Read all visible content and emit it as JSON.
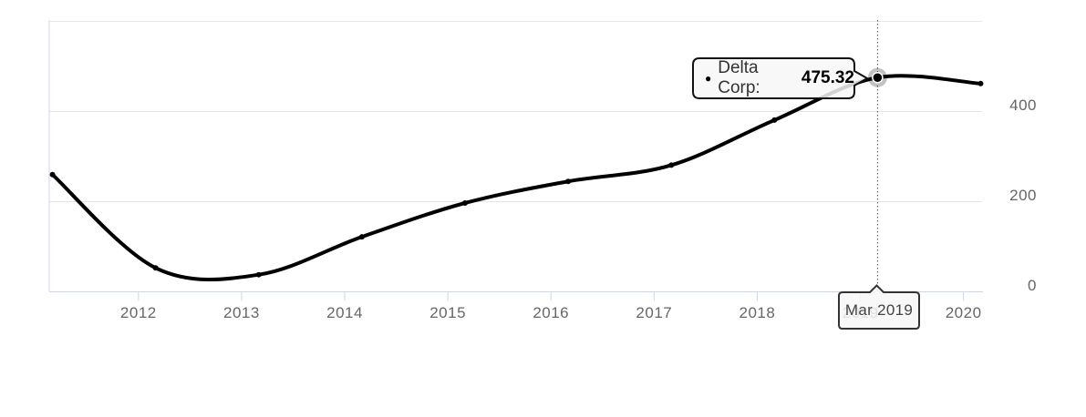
{
  "chart_data": {
    "type": "line",
    "title": "",
    "xlabel": "",
    "ylabel": "",
    "series": [
      {
        "name": "Delta Corp",
        "color": "#000000",
        "x": [
          "2011-03",
          "2012-03",
          "2013-03",
          "2014-03",
          "2015-03",
          "2016-03",
          "2017-03",
          "2018-03",
          "2019-03",
          "2020-03"
        ],
        "values": [
          260,
          53,
          38,
          122,
          197,
          245,
          281,
          381,
          475.32,
          462
        ]
      }
    ],
    "x_ticks": [
      "2012",
      "2013",
      "2014",
      "2015",
      "2016",
      "2017",
      "2018",
      "2019",
      "2020"
    ],
    "y_ticks": [
      "0",
      "200",
      "400"
    ],
    "ylim": [
      0,
      600
    ],
    "grid": true,
    "legend_position": "none",
    "y_axis_side": "right",
    "highlight": {
      "x": "2019-03",
      "value": "475.32",
      "xlabel": "Mar 2019"
    }
  },
  "tooltip": {
    "bullet": "●",
    "series_label": "Delta Corp:",
    "value": "475.32"
  },
  "crosshair": {
    "label": "Mar 2019"
  },
  "colors": {
    "line": "#000000",
    "grid": "#e6e6e6",
    "axis": "#ccd6eb",
    "label": "#666666",
    "halo": "rgba(0,0,0,0.24)",
    "bubble_bg": "rgba(247,247,247,0.85)",
    "bubble_border": "#111111",
    "crosshair_line": "#555555"
  }
}
